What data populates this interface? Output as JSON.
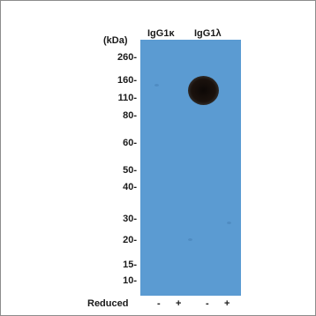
{
  "lanes": {
    "group1": "IgG1κ",
    "group2": "IgG1λ"
  },
  "axis_unit": "(kDa)",
  "markers": [
    "260-",
    "160-",
    "110-",
    "80-",
    "60-",
    "50-",
    "40-",
    "30-",
    "20-",
    "15-",
    "10-"
  ],
  "treatment": {
    "label": "Reduced",
    "signs": [
      "-",
      "+",
      "-",
      "+"
    ]
  },
  "colors": {
    "membrane": "#5b9bd2",
    "band": "#1b120d"
  }
}
